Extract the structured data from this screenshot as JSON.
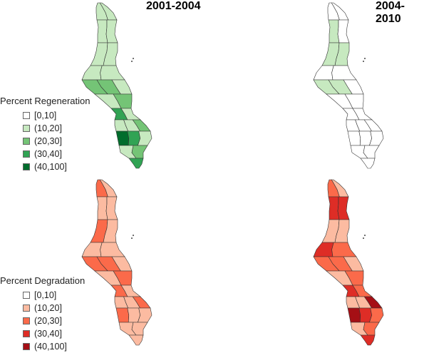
{
  "titles": {
    "left": "2001-2004",
    "right": "2004-2010"
  },
  "legend_regeneration": {
    "title": "Percent Regeneration",
    "classes": [
      {
        "label": "[0,10]",
        "color": "#ffffff"
      },
      {
        "label": "(10,20]",
        "color": "#c7e9c0"
      },
      {
        "label": "(20,30]",
        "color": "#74c476"
      },
      {
        "label": "(30,40]",
        "color": "#31a354"
      },
      {
        "label": "(40,100]",
        "color": "#006d2c"
      }
    ]
  },
  "legend_degradation": {
    "title": "Percent Degradation",
    "classes": [
      {
        "label": "[0,10]",
        "color": "#ffffff"
      },
      {
        "label": "(10,20]",
        "color": "#fcbba1"
      },
      {
        "label": "(20,30]",
        "color": "#fb6a4a"
      },
      {
        "label": "(30,40]",
        "color": "#de2d26"
      },
      {
        "label": "(40,100]",
        "color": "#a50f15"
      }
    ]
  },
  "maps": [
    {
      "id": "regen-2001-2004",
      "palette": "regeneration",
      "class_by_region": [
        1,
        1,
        1,
        1,
        1,
        1,
        1,
        1,
        2,
        2,
        1,
        1,
        2,
        3,
        1,
        1,
        1,
        2,
        4,
        3,
        1,
        1,
        2,
        3,
        2,
        2,
        0,
        2,
        3,
        2
      ]
    },
    {
      "id": "regen-2004-2010",
      "palette": "regeneration",
      "class_by_region": [
        0,
        0,
        1,
        0,
        1,
        1,
        0,
        0,
        1,
        1,
        0,
        0,
        0,
        0,
        0,
        0,
        0,
        0,
        0,
        0,
        0,
        0,
        0,
        0,
        0,
        0,
        0,
        0,
        0,
        0
      ]
    },
    {
      "id": "degr-2001-2004",
      "palette": "degradation",
      "class_by_region": [
        2,
        1,
        1,
        1,
        2,
        1,
        1,
        1,
        2,
        2,
        1,
        1,
        2,
        2,
        1,
        1,
        1,
        2,
        2,
        1,
        1,
        1,
        1,
        1,
        1,
        1,
        0,
        1,
        1,
        1
      ]
    },
    {
      "id": "degr-2004-2010",
      "palette": "degradation",
      "class_by_region": [
        2,
        1,
        3,
        3,
        1,
        1,
        3,
        2,
        2,
        2,
        1,
        1,
        2,
        3,
        2,
        1,
        1,
        4,
        4,
        3,
        2,
        1,
        2,
        3,
        2,
        2,
        2,
        3,
        4,
        2
      ]
    }
  ]
}
